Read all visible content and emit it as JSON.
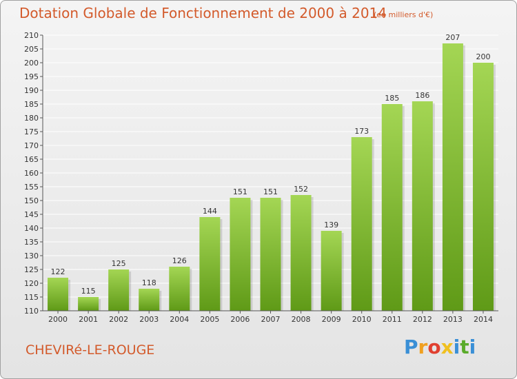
{
  "title": "Dotation Globale de Fonctionnement de 2000 à 2014",
  "unit_note": "(en milliers d'€)",
  "commune": "CHEVIRé-LE-ROUGE",
  "logo": {
    "letters": [
      "P",
      "r",
      "o",
      "x",
      "i",
      "t",
      "i"
    ],
    "colors": [
      "#3a8fd6",
      "#f0a020",
      "#e04030",
      "#f0c020",
      "#3a8fd6",
      "#5aab2a",
      "#3a8fd6"
    ]
  },
  "colors": {
    "bar_light": "#a4d654",
    "bar_dark": "#5f9a17",
    "grid": "#ffffff",
    "axis": "#555555",
    "text_accent": "#d35a2b"
  },
  "chart_data": {
    "type": "bar",
    "categories": [
      "2000",
      "2001",
      "2002",
      "2003",
      "2004",
      "2005",
      "2006",
      "2007",
      "2008",
      "2009",
      "2010",
      "2011",
      "2012",
      "2013",
      "2014"
    ],
    "values": [
      122,
      115,
      125,
      118,
      126,
      144,
      151,
      151,
      152,
      139,
      173,
      185,
      186,
      207,
      200
    ],
    "ylim": [
      110,
      210
    ],
    "yticks": [
      110,
      115,
      120,
      125,
      130,
      135,
      140,
      145,
      150,
      155,
      160,
      165,
      170,
      175,
      180,
      185,
      190,
      195,
      200,
      205,
      210
    ],
    "grid": true,
    "xlabel": "",
    "ylabel": ""
  }
}
